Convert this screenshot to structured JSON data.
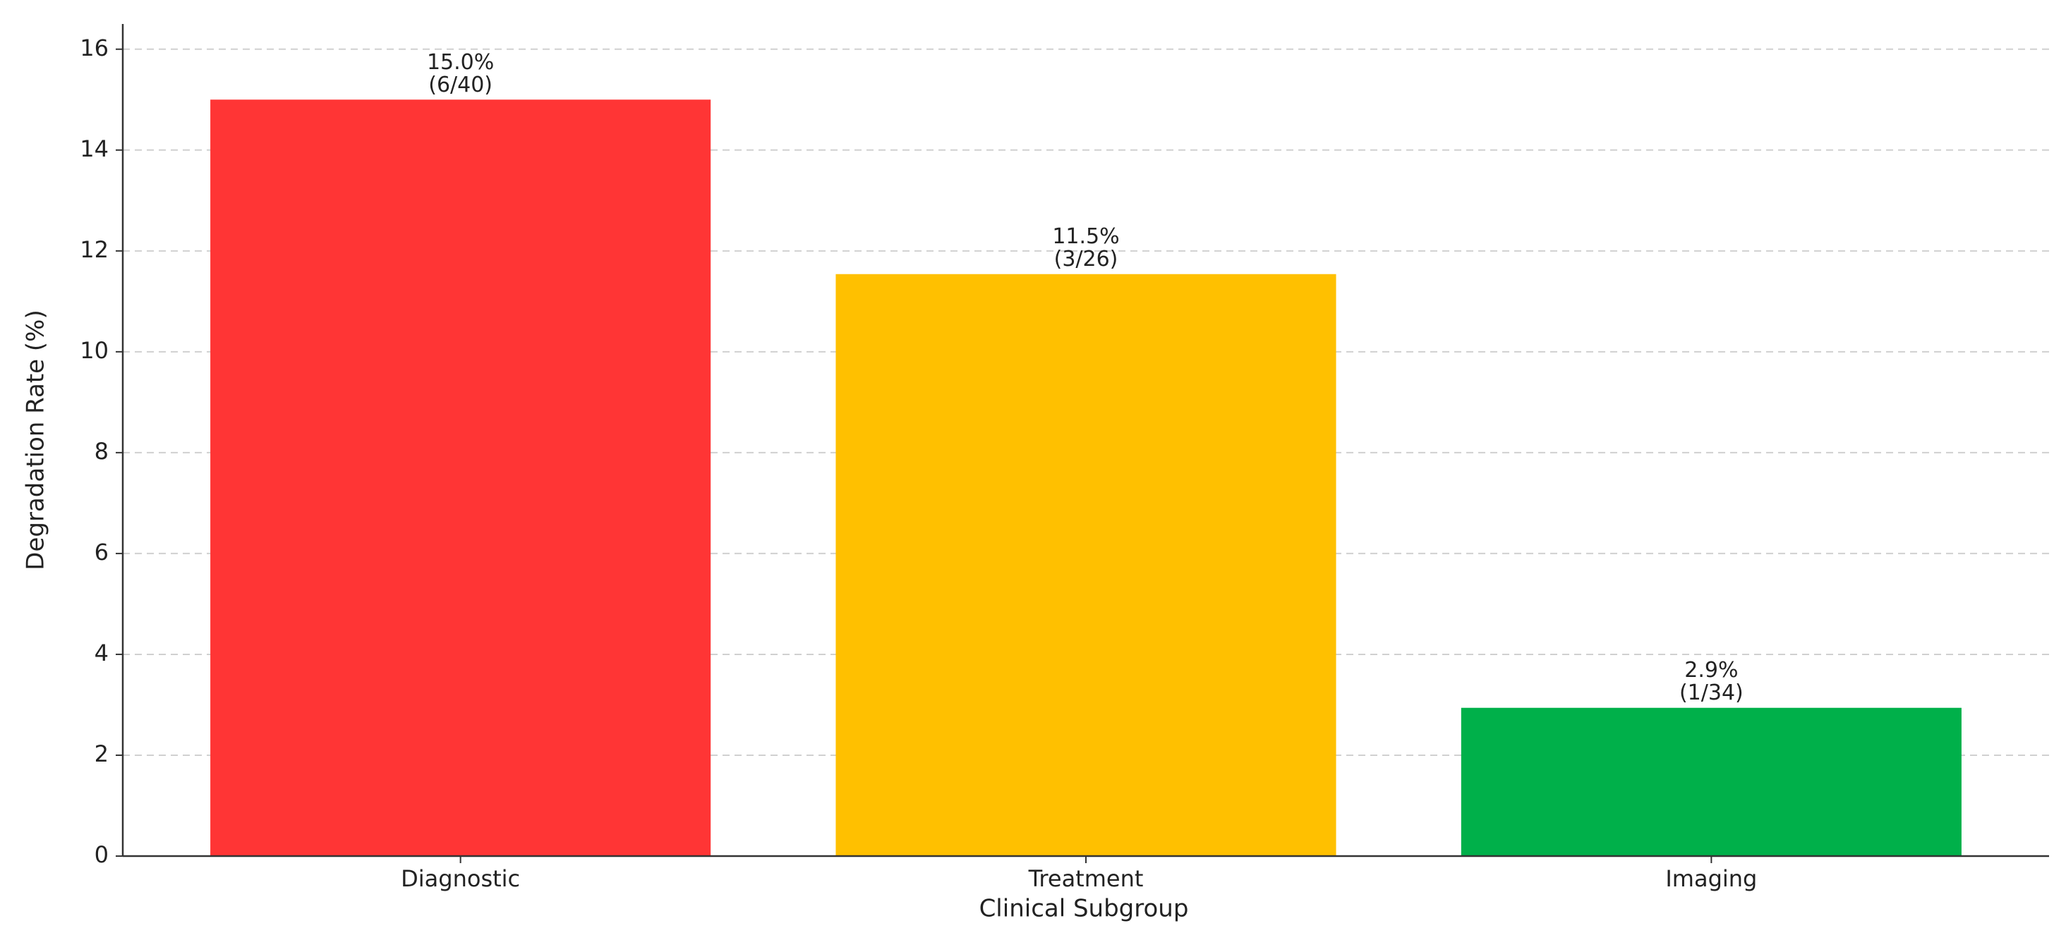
{
  "chart_data": {
    "type": "bar",
    "xlabel": "Clinical Subgroup",
    "ylabel": "Degradation Rate (%)",
    "categories": [
      "Diagnostic",
      "Treatment",
      "Imaging"
    ],
    "values": [
      15.0,
      11.54,
      2.94
    ],
    "value_labels": [
      [
        "15.0%",
        "(6/40)"
      ],
      [
        "11.5%",
        "(3/26)"
      ],
      [
        "2.9%",
        "(1/34)"
      ]
    ],
    "colors": [
      "#ff3535",
      "#ffc000",
      "#00b04a"
    ],
    "ylim": [
      0,
      16.5
    ],
    "yticks": [
      0,
      2,
      4,
      6,
      8,
      10,
      12,
      14,
      16
    ],
    "grid": true
  }
}
